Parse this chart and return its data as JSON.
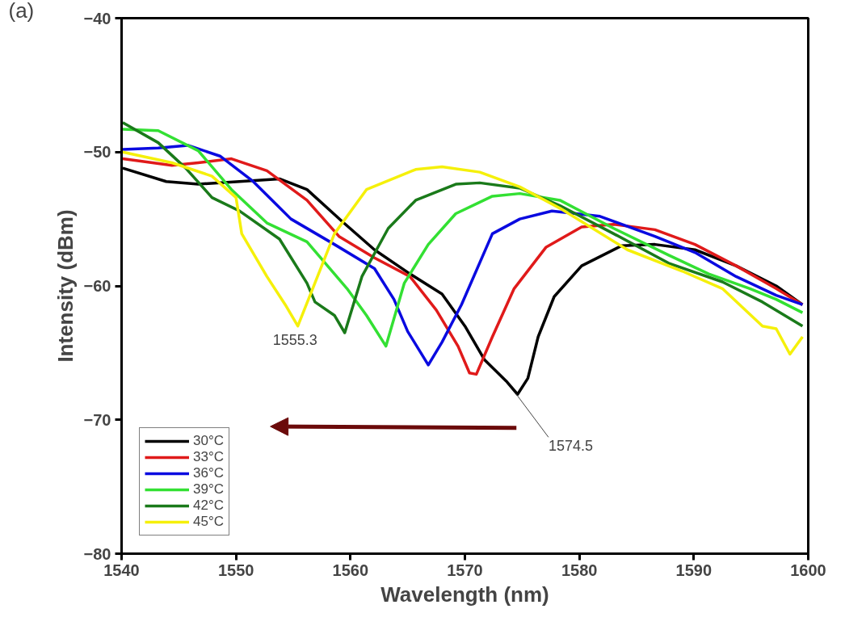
{
  "chart_data": {
    "type": "line",
    "xlabel": "Wavelength (nm)",
    "ylabel": "Intensity (dBm)",
    "xlim": [
      1540,
      1600
    ],
    "ylim": [
      -80,
      -40
    ],
    "xticks": [
      1540,
      1550,
      1560,
      1570,
      1580,
      1590,
      1600
    ],
    "yticks": [
      -80,
      -70,
      -60,
      -50,
      -40
    ],
    "grid": false,
    "legend": "bottom left",
    "line_style": "solid",
    "marker": "none",
    "annotations": [
      "(a)",
      {
        "text": "1555.3",
        "x": 1555.3,
        "y": -63.0
      },
      {
        "text": "1574.5",
        "x": 1574.5,
        "y": -68.1
      }
    ],
    "series": [
      {
        "name": "30°C",
        "color": "#000000",
        "x": [
          1540.1,
          1543.9,
          1546.7,
          1550.3,
          1553.8,
          1556.2,
          1559.3,
          1562.1,
          1565.2,
          1568.0,
          1570.0,
          1571.7,
          1573.6,
          1574.6,
          1575.5,
          1576.4,
          1577.8,
          1580.2,
          1583.7,
          1586.6,
          1590.1,
          1593.7,
          1597.2,
          1599.5
        ],
        "values": [
          -51.2,
          -52.2,
          -52.4,
          -52.2,
          -52.0,
          -52.8,
          -55.2,
          -57.3,
          -59.1,
          -60.6,
          -63.0,
          -65.5,
          -67.1,
          -68.1,
          -66.9,
          -63.8,
          -60.8,
          -58.5,
          -57.0,
          -56.9,
          -57.3,
          -58.5,
          -60.0,
          -61.4
        ]
      },
      {
        "name": "33°C",
        "color": "#e01a1a",
        "x": [
          1540.1,
          1544.4,
          1546.7,
          1549.6,
          1552.7,
          1556.2,
          1559.0,
          1562.1,
          1565.2,
          1567.5,
          1569.4,
          1570.4,
          1571.0,
          1572.4,
          1574.3,
          1577.1,
          1580.2,
          1583.0,
          1586.6,
          1590.1,
          1593.7,
          1597.2,
          1599.5
        ],
        "values": [
          -50.5,
          -51.0,
          -50.8,
          -50.5,
          -51.4,
          -53.6,
          -56.3,
          -57.9,
          -59.3,
          -61.8,
          -64.5,
          -66.5,
          -66.6,
          -63.8,
          -60.2,
          -57.1,
          -55.6,
          -55.4,
          -55.8,
          -56.9,
          -58.5,
          -60.2,
          -61.4
        ]
      },
      {
        "name": "36°C",
        "color": "#0a0ae0",
        "x": [
          1540.1,
          1543.2,
          1545.8,
          1548.6,
          1551.5,
          1554.8,
          1558.6,
          1562.1,
          1563.8,
          1565.0,
          1566.8,
          1568.0,
          1569.7,
          1572.4,
          1574.8,
          1577.6,
          1581.8,
          1586.6,
          1590.1,
          1593.7,
          1597.2,
          1599.5
        ],
        "values": [
          -49.8,
          -49.7,
          -49.5,
          -50.3,
          -52.2,
          -55.0,
          -56.9,
          -58.7,
          -61.0,
          -63.4,
          -65.9,
          -64.2,
          -61.4,
          -56.1,
          -55.0,
          -54.4,
          -54.8,
          -56.3,
          -57.5,
          -59.3,
          -60.7,
          -61.4
        ]
      },
      {
        "name": "39°C",
        "color": "#33e033",
        "x": [
          1540.1,
          1543.2,
          1546.7,
          1549.6,
          1552.7,
          1556.2,
          1559.7,
          1561.4,
          1563.1,
          1564.7,
          1566.8,
          1569.2,
          1572.4,
          1574.8,
          1578.3,
          1583.0,
          1587.8,
          1591.3,
          1594.9,
          1597.2,
          1599.5
        ],
        "values": [
          -48.3,
          -48.4,
          -49.9,
          -52.8,
          -55.3,
          -56.7,
          -60.2,
          -62.2,
          -64.5,
          -59.8,
          -56.9,
          -54.6,
          -53.3,
          -53.1,
          -53.6,
          -55.7,
          -57.7,
          -59.1,
          -60.2,
          -61.0,
          -62.0
        ]
      },
      {
        "name": "42°C",
        "color": "#1a7a1a",
        "x": [
          1540.1,
          1543.2,
          1545.6,
          1547.9,
          1550.3,
          1553.8,
          1556.2,
          1556.9,
          1558.6,
          1559.5,
          1561.0,
          1563.3,
          1565.7,
          1569.2,
          1571.3,
          1574.8,
          1578.3,
          1583.0,
          1587.8,
          1592.5,
          1596.0,
          1599.5
        ],
        "values": [
          -47.8,
          -49.3,
          -51.2,
          -53.4,
          -54.4,
          -56.5,
          -59.8,
          -61.2,
          -62.2,
          -63.5,
          -59.3,
          -55.7,
          -53.6,
          -52.4,
          -52.3,
          -52.7,
          -54.0,
          -56.1,
          -58.3,
          -59.7,
          -61.2,
          -63.0
        ]
      },
      {
        "name": "45°C",
        "color": "#f5f00a",
        "x": [
          1540.1,
          1544.4,
          1547.9,
          1550.0,
          1550.5,
          1552.7,
          1554.3,
          1555.4,
          1556.7,
          1558.6,
          1561.4,
          1565.7,
          1568.0,
          1571.3,
          1574.8,
          1578.3,
          1584.2,
          1589.0,
          1592.5,
          1596.0,
          1597.2,
          1598.4,
          1599.5
        ],
        "values": [
          -50.0,
          -50.8,
          -51.8,
          -53.4,
          -56.1,
          -59.3,
          -61.4,
          -63.0,
          -60.2,
          -56.1,
          -52.8,
          -51.3,
          -51.1,
          -51.5,
          -52.6,
          -54.2,
          -57.3,
          -58.9,
          -60.2,
          -63.0,
          -63.2,
          -65.1,
          -63.8
        ]
      }
    ]
  }
}
